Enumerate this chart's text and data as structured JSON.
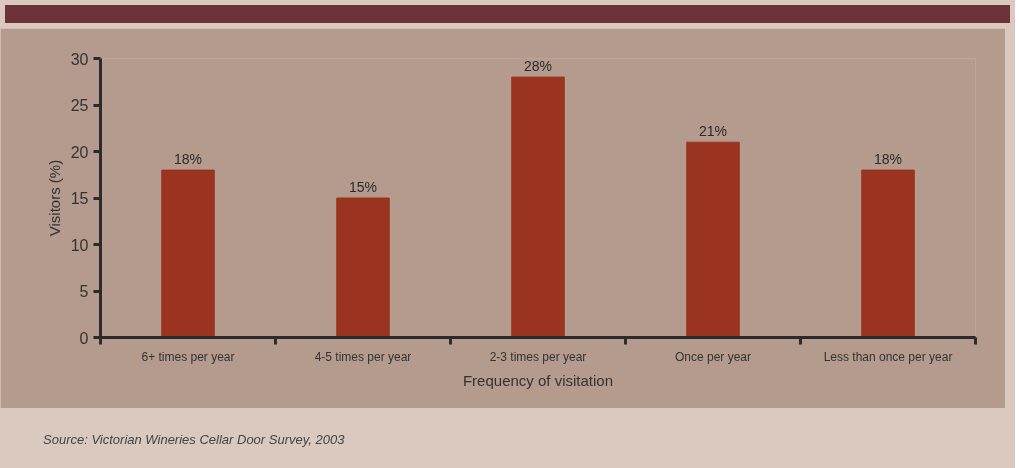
{
  "chart_data": {
    "type": "bar",
    "xlabel": "Frequency of visitation",
    "ylabel": "Visitors (%)",
    "categories": [
      "6+ times per year",
      "4-5 times per year",
      "2-3 times per year",
      "Once per year",
      "Less than once per year"
    ],
    "values": [
      18,
      15,
      28,
      21,
      18
    ],
    "value_labels": [
      "18%",
      "15%",
      "28%",
      "21%",
      "18%"
    ],
    "color": "#9a3320",
    "ylim": [
      0,
      30
    ],
    "yticks": [
      0,
      5,
      10,
      15,
      20,
      25,
      30
    ],
    "grid": false,
    "annotations": [
      "Source: Victorian Wineries Cellar Door Survey, 2003"
    ]
  }
}
